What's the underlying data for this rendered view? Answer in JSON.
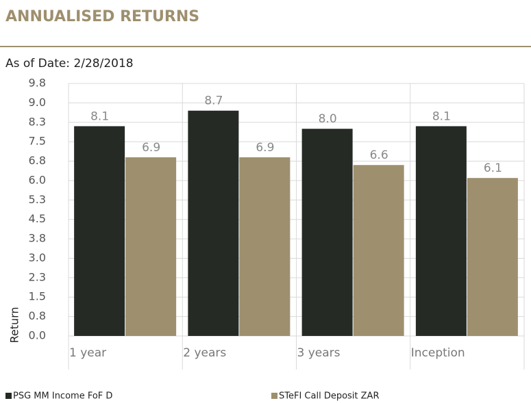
{
  "header": {
    "title": "ANNUALISED RETURNS",
    "as_of": "As of Date: 2/28/2018"
  },
  "chart_data": {
    "type": "bar",
    "y_label": "Return",
    "categories": [
      "1 year",
      "2 years",
      "3 years",
      "Inception"
    ],
    "series": [
      {
        "name": "PSG MM Income FoF D",
        "color": "#252a25",
        "values": [
          8.1,
          8.7,
          8.0,
          8.1
        ],
        "value_labels": [
          "8.1",
          "8.7",
          "8.0",
          "8.1"
        ]
      },
      {
        "name": "STeFI Call Deposit ZAR",
        "color": "#9e8f6e",
        "values": [
          6.9,
          6.9,
          6.6,
          6.1
        ],
        "value_labels": [
          "6.9",
          "6.9",
          "6.6",
          "6.1"
        ]
      }
    ],
    "ylim": [
      0,
      9.75
    ],
    "yticks": [
      {
        "value": 0,
        "label": "0.0"
      },
      {
        "value": 0.75,
        "label": "0.8"
      },
      1.5,
      {
        "value": 2.25,
        "label": "2.3"
      },
      {
        "value": 3,
        "label": "3.0"
      },
      {
        "value": 3.75,
        "label": "3.8"
      },
      4.5,
      {
        "value": 5.25,
        "label": "5.3"
      },
      {
        "value": 6,
        "label": "6.0"
      },
      {
        "value": 6.75,
        "label": "6.8"
      },
      7.5,
      {
        "value": 8.25,
        "label": "8.3"
      },
      {
        "value": 9,
        "label": "9.0"
      },
      {
        "value": 9.75,
        "label": "9.8"
      }
    ],
    "grid": true
  }
}
